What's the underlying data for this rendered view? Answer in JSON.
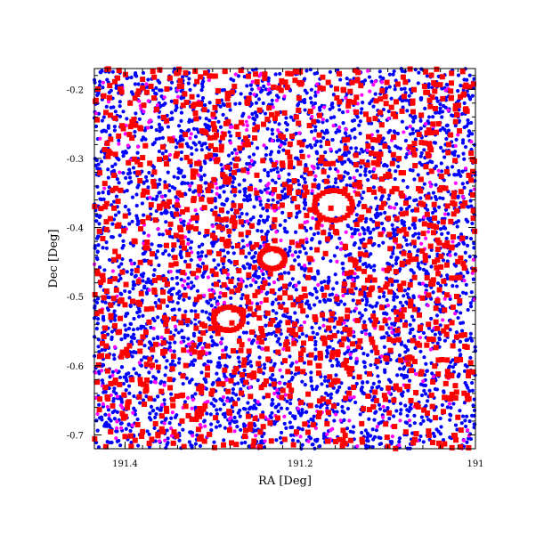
{
  "chart_data": {
    "type": "scatter",
    "title": "",
    "xlabel": "RA [Deg]",
    "ylabel": "Dec [Deg]",
    "xlim": [
      191.435,
      191.0
    ],
    "ylim": [
      -0.72,
      -0.17
    ],
    "x_reversed": true,
    "xticks": [
      {
        "value": 191.4,
        "label": "191.4"
      },
      {
        "value": 191.2,
        "label": "191.2"
      },
      {
        "value": 191.0,
        "label": "191"
      }
    ],
    "yticks": [
      {
        "value": -0.2,
        "label": "-0.2"
      },
      {
        "value": -0.3,
        "label": "-0.3"
      },
      {
        "value": -0.4,
        "label": "-0.4"
      },
      {
        "value": -0.5,
        "label": "-0.5"
      },
      {
        "value": -0.6,
        "label": "-0.6"
      },
      {
        "value": -0.7,
        "label": "-0.7"
      }
    ],
    "grid": false,
    "legend": "none",
    "colors": {
      "blue": "#0000ff",
      "magenta": "#ff00ff",
      "red": "#ff0000"
    },
    "series": [
      {
        "color": "#0000ff",
        "marker": "dot",
        "points_approx": 3800,
        "points": [
          [
            191.405,
            -0.205
          ],
          [
            191.352,
            -0.238
          ],
          [
            191.281,
            -0.262
          ],
          [
            191.195,
            -0.215
          ],
          [
            191.121,
            -0.248
          ],
          [
            191.052,
            -0.221
          ],
          [
            191.402,
            -0.321
          ],
          [
            191.331,
            -0.352
          ],
          [
            191.258,
            -0.308
          ],
          [
            191.168,
            -0.334
          ],
          [
            191.092,
            -0.302
          ],
          [
            191.031,
            -0.348
          ],
          [
            191.388,
            -0.421
          ],
          [
            191.311,
            -0.452
          ],
          [
            191.231,
            -0.418
          ],
          [
            191.148,
            -0.441
          ],
          [
            191.071,
            -0.412
          ],
          [
            191.021,
            -0.468
          ],
          [
            191.412,
            -0.521
          ],
          [
            191.342,
            -0.548
          ],
          [
            191.261,
            -0.512
          ],
          [
            191.182,
            -0.538
          ],
          [
            191.101,
            -0.505
          ],
          [
            191.041,
            -0.552
          ],
          [
            191.398,
            -0.622
          ],
          [
            191.322,
            -0.648
          ],
          [
            191.242,
            -0.611
          ],
          [
            191.158,
            -0.638
          ],
          [
            191.081,
            -0.602
          ],
          [
            191.025,
            -0.655
          ],
          [
            191.415,
            -0.692
          ],
          [
            191.338,
            -0.701
          ],
          [
            191.272,
            -0.688
          ],
          [
            191.188,
            -0.705
          ],
          [
            191.108,
            -0.682
          ],
          [
            191.048,
            -0.698
          ]
        ]
      },
      {
        "color": "#ff00ff",
        "marker": "dot",
        "points_approx": 450,
        "points": [
          [
            191.382,
            -0.228
          ],
          [
            191.222,
            -0.281
          ],
          [
            191.082,
            -0.262
          ],
          [
            191.362,
            -0.402
          ],
          [
            191.195,
            -0.455
          ],
          [
            191.058,
            -0.431
          ],
          [
            191.348,
            -0.578
          ],
          [
            191.208,
            -0.562
          ],
          [
            191.068,
            -0.612
          ],
          [
            191.391,
            -0.668
          ],
          [
            191.251,
            -0.701
          ],
          [
            191.112,
            -0.688
          ]
        ]
      },
      {
        "color": "#ff0000",
        "marker": "square",
        "points_approx": 1300,
        "points": [
          [
            191.342,
            -0.218
          ],
          [
            191.212,
            -0.298
          ],
          [
            191.132,
            -0.341
          ],
          [
            191.272,
            -0.301
          ],
          [
            191.408,
            -0.362
          ],
          [
            191.165,
            -0.372
          ],
          [
            191.308,
            -0.458
          ],
          [
            191.232,
            -0.492
          ],
          [
            191.278,
            -0.538
          ],
          [
            191.101,
            -0.462
          ],
          [
            191.362,
            -0.602
          ],
          [
            191.191,
            -0.641
          ],
          [
            191.021,
            -0.592
          ],
          [
            191.421,
            -0.492
          ],
          [
            191.055,
            -0.381
          ],
          [
            191.381,
            -0.702
          ],
          [
            191.151,
            -0.708
          ],
          [
            191.251,
            -0.178
          ]
        ]
      }
    ]
  }
}
